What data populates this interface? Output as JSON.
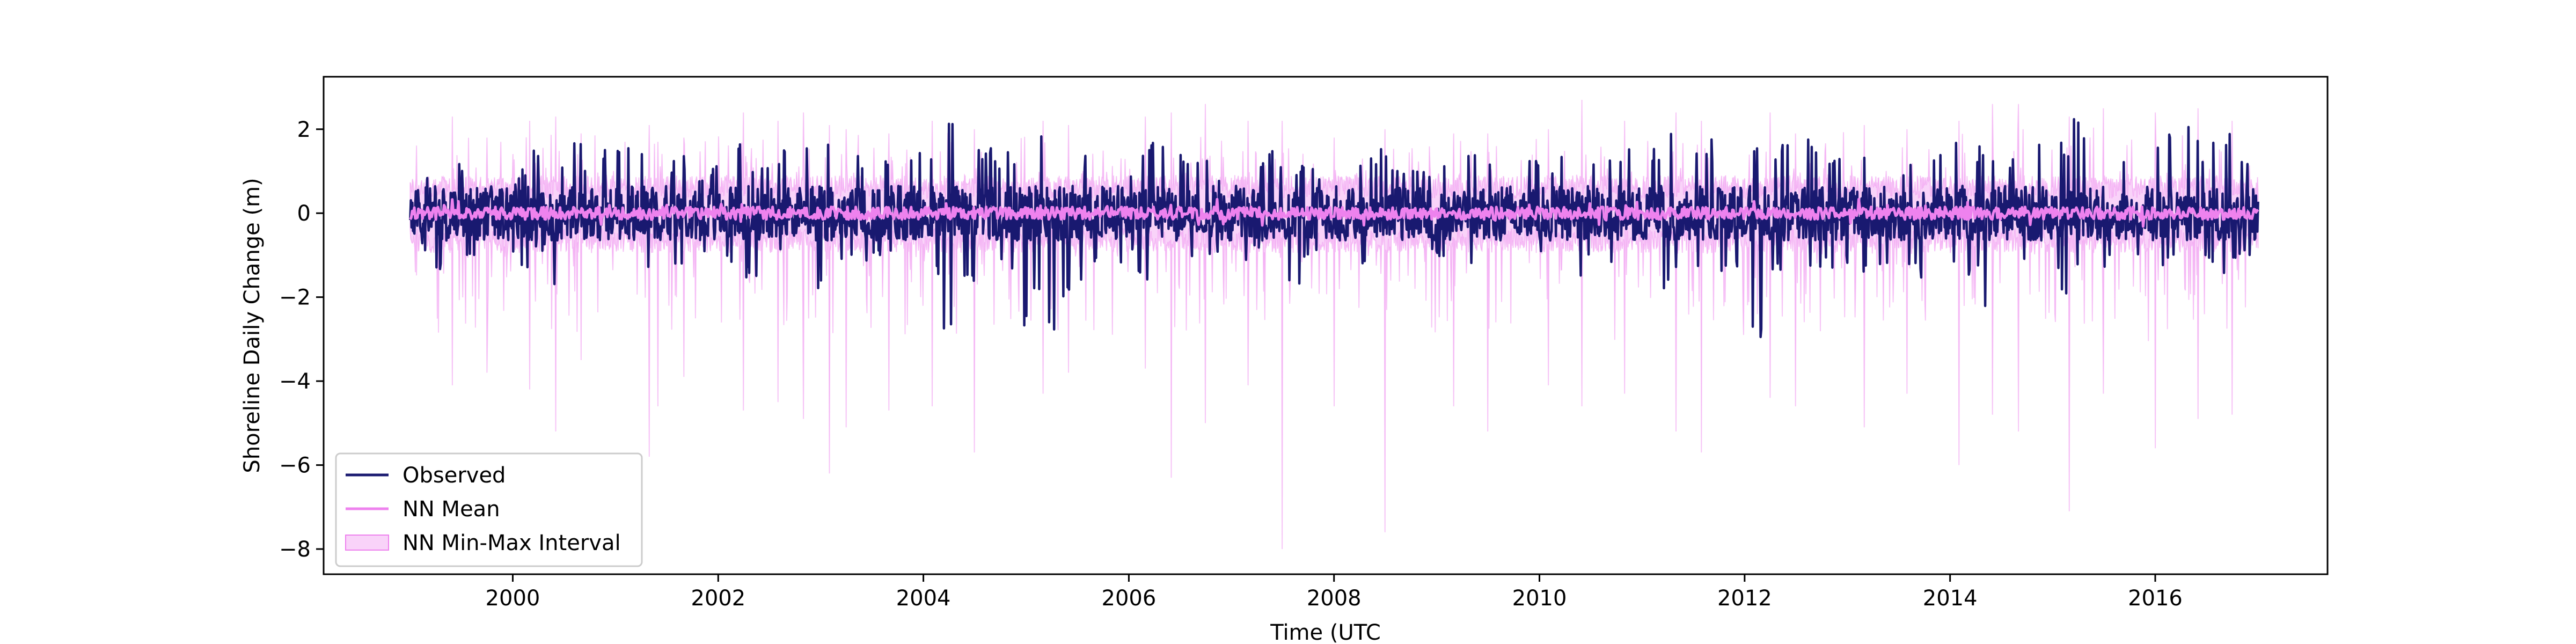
{
  "chart_data": {
    "type": "line",
    "title": "",
    "xlabel": "Time (UTC",
    "ylabel": "Shoreline Daily Change (m)",
    "xlim": [
      "1998-02-27",
      "2017-09-05"
    ],
    "ylim": [
      -8.6,
      3.25
    ],
    "x_ticks": [
      {
        "value": "2000-01-01",
        "label": "2000"
      },
      {
        "value": "2002-01-01",
        "label": "2002"
      },
      {
        "value": "2004-01-01",
        "label": "2004"
      },
      {
        "value": "2006-01-01",
        "label": "2006"
      },
      {
        "value": "2008-01-01",
        "label": "2008"
      },
      {
        "value": "2010-01-01",
        "label": "2010"
      },
      {
        "value": "2012-01-01",
        "label": "2012"
      },
      {
        "value": "2014-01-01",
        "label": "2014"
      },
      {
        "value": "2016-01-01",
        "label": "2016"
      }
    ],
    "y_ticks": [
      {
        "value": 2,
        "label": "2"
      },
      {
        "value": 0,
        "label": "0"
      },
      {
        "value": -2,
        "label": "−2"
      },
      {
        "value": -4,
        "label": "−4"
      },
      {
        "value": -6,
        "label": "−6"
      },
      {
        "value": -8,
        "label": "−8"
      }
    ],
    "grid": false,
    "legend_position": "lower-left",
    "series": [
      {
        "name": "Observed",
        "kind": "line",
        "color": "#191970",
        "x": [
          "1999-01-01",
          "1999-02-15",
          "1999-04-01",
          "1999-05-15",
          "1999-07-01",
          "1999-08-15",
          "1999-10-01",
          "1999-11-15",
          "2000-01-01",
          "2000-02-15",
          "2000-04-01",
          "2000-05-15",
          "2000-07-01",
          "2000-08-15",
          "2000-10-01",
          "2000-11-15",
          "2001-01-01",
          "2001-02-15",
          "2001-04-01",
          "2001-05-15",
          "2001-07-01",
          "2001-08-15",
          "2001-10-01",
          "2001-11-15",
          "2002-01-01",
          "2002-02-15",
          "2002-04-01",
          "2002-05-15",
          "2002-07-01",
          "2002-08-15",
          "2002-10-01",
          "2002-11-15",
          "2003-01-01",
          "2003-02-15",
          "2003-04-01",
          "2003-05-15",
          "2003-07-01",
          "2003-08-15",
          "2003-10-01",
          "2003-11-15",
          "2004-01-01",
          "2004-02-15",
          "2004-04-01",
          "2004-05-15",
          "2004-07-01",
          "2004-08-15",
          "2004-10-01",
          "2004-11-15",
          "2005-01-01",
          "2005-02-15",
          "2005-04-01",
          "2005-05-15",
          "2005-07-01",
          "2005-08-15",
          "2005-10-01",
          "2005-11-15",
          "2006-01-01",
          "2006-02-15",
          "2006-04-01",
          "2006-05-15",
          "2006-07-01",
          "2006-08-15",
          "2006-10-01",
          "2006-11-15",
          "2007-01-01",
          "2007-02-15",
          "2007-04-01",
          "2007-05-15",
          "2007-07-01",
          "2007-08-15",
          "2007-10-01",
          "2007-11-15",
          "2008-01-01",
          "2008-02-15",
          "2008-04-01",
          "2008-05-15",
          "2008-07-01",
          "2008-08-15",
          "2008-10-01",
          "2008-11-15",
          "2009-01-01",
          "2009-02-15",
          "2009-04-01",
          "2009-05-15",
          "2009-07-01",
          "2009-08-15",
          "2009-10-01",
          "2009-11-15",
          "2010-01-01",
          "2010-02-15",
          "2010-04-01",
          "2010-05-15",
          "2010-07-01",
          "2010-08-15",
          "2010-10-01",
          "2010-11-15",
          "2011-01-01",
          "2011-02-15",
          "2011-04-01",
          "2011-05-15",
          "2011-07-01",
          "2011-08-15",
          "2011-10-01",
          "2011-11-15",
          "2012-01-01",
          "2012-02-15",
          "2012-04-01",
          "2012-05-15",
          "2012-07-01",
          "2012-08-15",
          "2012-10-01",
          "2012-11-15",
          "2013-01-01",
          "2013-02-15",
          "2013-04-01",
          "2013-05-15",
          "2013-07-01",
          "2013-08-15",
          "2013-10-01",
          "2013-11-15",
          "2014-01-01",
          "2014-02-15",
          "2014-04-01",
          "2014-05-15",
          "2014-07-01",
          "2014-08-15",
          "2014-10-01",
          "2014-11-15",
          "2015-01-01",
          "2015-02-15",
          "2015-04-01",
          "2015-05-15",
          "2015-07-01",
          "2015-08-15",
          "2015-10-01",
          "2015-11-15",
          "2016-01-01",
          "2016-02-15",
          "2016-04-01",
          "2016-05-15",
          "2016-07-01",
          "2016-08-15",
          "2016-10-01",
          "2016-11-15"
        ],
        "high": [
          0.4,
          0.9,
          1.1,
          1.5,
          1.2,
          1.8,
          1.0,
          1.3,
          0.9,
          1.1,
          1.6,
          1.4,
          1.3,
          1.7,
          1.2,
          1.6,
          1.5,
          1.9,
          1.8,
          1.3,
          1.2,
          1.4,
          1.1,
          1.0,
          1.3,
          1.5,
          2.0,
          1.1,
          1.4,
          1.5,
          1.2,
          1.9,
          1.6,
          1.8,
          2.0,
          1.4,
          1.2,
          1.3,
          1.1,
          1.6,
          1.5,
          1.4,
          2.3,
          1.9,
          1.7,
          1.6,
          1.3,
          1.5,
          1.4,
          1.9,
          2.0,
          1.8,
          1.9,
          1.4,
          1.2,
          1.3,
          1.1,
          1.6,
          1.7,
          2.0,
          1.5,
          1.2,
          1.3,
          1.0,
          1.2,
          1.1,
          1.4,
          1.5,
          1.3,
          1.1,
          1.2,
          1.0,
          1.1,
          1.2,
          1.3,
          1.5,
          1.7,
          1.1,
          1.2,
          1.0,
          1.2,
          1.3,
          1.1,
          1.4,
          1.3,
          1.5,
          1.2,
          1.4,
          1.5,
          1.2,
          1.6,
          1.9,
          1.5,
          1.3,
          1.4,
          1.6,
          1.8,
          1.6,
          2.0,
          1.4,
          1.7,
          1.8,
          1.6,
          1.5,
          1.3,
          1.6,
          1.4,
          1.7,
          1.5,
          1.9,
          1.5,
          1.3,
          1.4,
          1.5,
          1.7,
          1.6,
          1.2,
          1.3,
          1.5,
          1.6,
          1.9,
          1.7,
          1.6,
          1.5,
          1.8,
          1.4,
          1.7,
          1.9,
          1.5,
          1.7,
          2.3,
          1.9,
          1.6,
          1.8,
          1.4,
          1.6,
          1.7,
          2.0,
          1.9,
          2.2,
          1.6,
          1.8,
          2.1,
          1.5
        ],
        "low": [
          -0.6,
          -0.9,
          -1.5,
          -0.8,
          -1.1,
          -1.0,
          -0.9,
          -0.7,
          -1.2,
          -1.4,
          -0.9,
          -1.8,
          -1.5,
          -0.9,
          -1.2,
          -0.8,
          -1.1,
          -2.0,
          -1.9,
          -1.4,
          -1.1,
          -1.2,
          -0.9,
          -1.0,
          -1.1,
          -1.3,
          -1.6,
          -1.9,
          -1.2,
          -1.0,
          -1.4,
          -1.1,
          -1.9,
          -2.4,
          -1.3,
          -1.5,
          -1.2,
          -1.0,
          -1.4,
          -1.3,
          -1.2,
          -1.5,
          -2.8,
          -1.6,
          -1.8,
          -1.3,
          -1.2,
          -1.5,
          -2.9,
          -2.3,
          -3.3,
          -2.2,
          -1.9,
          -1.4,
          -1.5,
          -1.2,
          -1.1,
          -1.6,
          -2.2,
          -1.5,
          -1.3,
          -1.2,
          -1.0,
          -1.2,
          -1.0,
          -1.2,
          -0.9,
          -1.2,
          -2.0,
          -1.7,
          -1.2,
          -1.1,
          -1.0,
          -1.5,
          -1.2,
          -1.3,
          -1.2,
          -1.0,
          -1.3,
          -1.2,
          -1.1,
          -1.3,
          -1.5,
          -1.2,
          -1.4,
          -1.1,
          -3.3,
          -1.4,
          -1.2,
          -1.5,
          -1.3,
          -1.6,
          -1.2,
          -1.1,
          -1.4,
          -1.3,
          -1.2,
          -1.5,
          -1.9,
          -1.6,
          -1.3,
          -1.5,
          -1.4,
          -1.3,
          -1.6,
          -3.3,
          -1.4,
          -1.6,
          -1.2,
          -1.5,
          -1.4,
          -1.3,
          -1.2,
          -1.6,
          -1.3,
          -1.5,
          -1.2,
          -1.4,
          -1.7,
          -1.5,
          -1.3,
          -1.6,
          -1.5,
          -2.5,
          -1.6,
          -1.4,
          -1.2,
          -1.5,
          -1.6,
          -2.4,
          -1.4,
          -1.6,
          -1.3,
          -1.5,
          -1.4,
          -1.2,
          -1.6,
          -1.3,
          -1.5,
          -1.4,
          -1.2,
          -1.5,
          -1.1,
          -1.0
        ]
      },
      {
        "name": "NN Mean",
        "kind": "line",
        "color": "#ee82ee",
        "x_range": [
          "1999-01-01",
          "2017-01-01"
        ],
        "values_approx": [
          0.1,
          -0.1
        ]
      },
      {
        "name": "NN Min-Max Interval",
        "kind": "band",
        "color": "#ee82ee",
        "x": [
          "1999-06-01",
          "1999-10-01",
          "2000-03-01",
          "2000-06-01",
          "2000-09-01",
          "2001-05-01",
          "2001-06-01",
          "2001-09-01",
          "2002-04-01",
          "2002-08-01",
          "2002-11-01",
          "2003-02-01",
          "2003-04-01",
          "2003-09-01",
          "2004-02-01",
          "2004-07-01",
          "2005-03-01",
          "2005-06-01",
          "2006-03-01",
          "2006-06-01",
          "2006-10-01",
          "2007-03-01",
          "2007-07-01",
          "2008-01-01",
          "2008-07-01",
          "2009-03-01",
          "2009-07-01",
          "2010-02-01",
          "2010-06-01",
          "2010-11-01",
          "2011-05-01",
          "2011-08-01",
          "2012-04-01",
          "2012-07-01",
          "2013-03-01",
          "2013-08-01",
          "2014-02-01",
          "2014-06-01",
          "2014-09-01",
          "2015-03-01",
          "2015-07-01",
          "2016-01-01",
          "2016-06-01",
          "2016-10-01"
        ],
        "upper": [
          2.3,
          1.8,
          2.2,
          2.3,
          1.9,
          2.1,
          1.7,
          1.8,
          2.4,
          2.2,
          2.4,
          2.1,
          2.0,
          1.9,
          2.2,
          2.0,
          2.2,
          2.1,
          2.3,
          2.4,
          2.6,
          2.2,
          2.2,
          1.8,
          2.0,
          1.9,
          1.9,
          2.0,
          2.7,
          2.2,
          2.4,
          2.2,
          2.4,
          1.9,
          2.1,
          2.0,
          2.2,
          2.6,
          2.6,
          2.3,
          2.5,
          2.4,
          2.5,
          2.2
        ],
        "lower": [
          -4.1,
          -3.8,
          -4.2,
          -5.2,
          -3.5,
          -5.8,
          -4.6,
          -3.9,
          -4.7,
          -4.5,
          -4.9,
          -6.2,
          -5.1,
          -4.7,
          -4.6,
          -5.7,
          -4.3,
          -3.8,
          -3.7,
          -6.3,
          -5.0,
          -4.1,
          -8.0,
          -4.6,
          -7.6,
          -4.6,
          -5.2,
          -4.1,
          -4.6,
          -4.3,
          -5.2,
          -5.7,
          -4.4,
          -4.6,
          -5.1,
          -4.3,
          -6.0,
          -4.8,
          -5.2,
          -7.1,
          -4.3,
          -5.6,
          -4.9,
          -4.8
        ]
      }
    ],
    "legend": [
      {
        "label": "Observed",
        "marker": "line",
        "color": "#191970"
      },
      {
        "label": "NN Mean",
        "marker": "line",
        "color": "#ee82ee"
      },
      {
        "label": "NN Min-Max Interval",
        "marker": "patch",
        "color": "#ee82ee"
      }
    ]
  }
}
